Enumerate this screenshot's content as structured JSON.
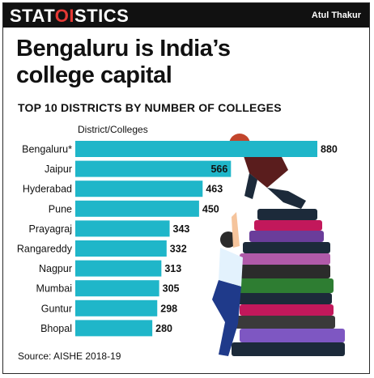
{
  "header": {
    "brand_pre": "STAT",
    "brand_hl": "OI",
    "brand_post": "STICS",
    "author": "Atul Thakur"
  },
  "headline_line1": "Bengaluru is India’s",
  "headline_line2": "college capital",
  "source": "Source: AISHE 2018-19",
  "chart_data": {
    "type": "bar",
    "orientation": "horizontal",
    "title": "TOP 10 DISTRICTS BY NUMBER OF COLLEGES",
    "category_header": "District/Colleges",
    "categories": [
      "Bengaluru*",
      "Jaipur",
      "Hyderabad",
      "Pune",
      "Prayagraj",
      "Rangareddy",
      "Nagpur",
      "Mumbai",
      "Guntur",
      "Bhopal"
    ],
    "values": [
      880,
      566,
      463,
      450,
      343,
      332,
      313,
      305,
      298,
      280
    ],
    "bar_color": "#1fb6c9",
    "grid": false,
    "legend": "none"
  }
}
